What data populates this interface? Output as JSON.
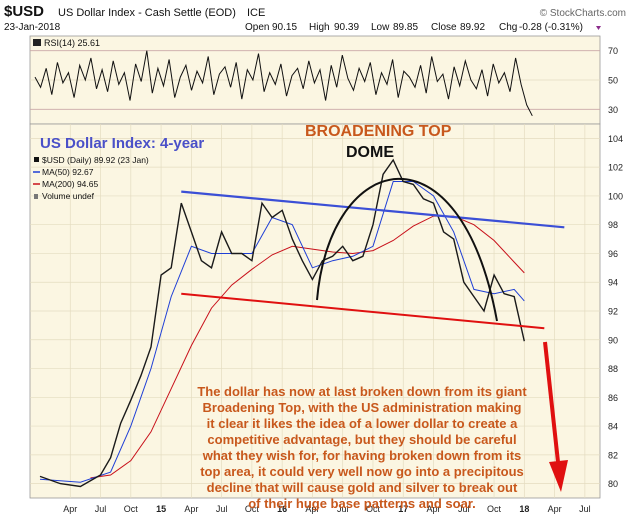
{
  "header": {
    "symbol": "$USD",
    "name": "US Dollar Index - Cash Settle (EOD)",
    "exchange": "ICE",
    "watermark": "© StockCharts.com",
    "date": "23-Jan-2018",
    "open_label": "Open",
    "open": "90.15",
    "high_label": "High",
    "high": "90.39",
    "low_label": "Low",
    "low": "89.85",
    "close_label": "Close",
    "close": "89.92",
    "chg_label": "Chg",
    "chg": "-0.28 (-0.31%)"
  },
  "rsi_panel": {
    "label": "RSI(14) 25.61",
    "ticks": [
      "70",
      "50",
      "30"
    ]
  },
  "legend": {
    "price": "$USD (Daily) 89.92 (23 Jan)",
    "ma50": "MA(50) 92.67",
    "ma200": "MA(200) 94.65",
    "volume": "Volume undef"
  },
  "annotations": {
    "panel_title": "US Dollar Index: 4-year",
    "broadening_top": "BROADENING TOP",
    "dome": "DOME",
    "commentary": [
      "The dollar has now at last broken down from its giant",
      "Broadening Top, with the US administration making",
      "it clear it likes the idea of a lower dollar to create a",
      "competitive advantage, but they should be careful",
      "what they wish for, for having broken down from its",
      "top area, it could very well now go into a precipitous",
      "decline that will cause gold and silver to break out",
      "of their huge base patterns and soar."
    ]
  },
  "colors": {
    "panel_bg": "#fbf6e2",
    "price": "#1a1a1a",
    "ma50": "#1f3fd6",
    "ma200": "#c8101a",
    "trend_upper": "#3b4fd6",
    "trend_lower": "#e01010",
    "arrow": "#e01010",
    "label_orange": "#c8581c",
    "label_blue": "#4a50c8"
  },
  "chart_data": {
    "type": "line",
    "title": "$USD (Daily)",
    "y_ticks": [
      "104",
      "102",
      "100",
      "98",
      "96",
      "94",
      "92",
      "90",
      "88",
      "86",
      "84",
      "82",
      "80"
    ],
    "ylim": [
      79,
      105
    ],
    "x_ticks": [
      "Apr",
      "Jul",
      "Oct",
      "15",
      "Apr",
      "Jul",
      "Oct",
      "16",
      "Apr",
      "Jul",
      "Oct",
      "17",
      "Apr",
      "Jul",
      "Oct",
      "18",
      "Apr",
      "Jul"
    ],
    "series": [
      {
        "name": "$USD (Daily)",
        "x": [
          "2014-01",
          "2014-03",
          "2014-05",
          "2014-07",
          "2014-08",
          "2014-09",
          "2014-10",
          "2014-11",
          "2014-12",
          "2015-01",
          "2015-02",
          "2015-03",
          "2015-04",
          "2015-05",
          "2015-06",
          "2015-07",
          "2015-08",
          "2015-09",
          "2015-10",
          "2015-11",
          "2015-12",
          "2016-01",
          "2016-02",
          "2016-03",
          "2016-04",
          "2016-05",
          "2016-06",
          "2016-07",
          "2016-08",
          "2016-09",
          "2016-10",
          "2016-11",
          "2016-12",
          "2017-01",
          "2017-02",
          "2017-03",
          "2017-04",
          "2017-05",
          "2017-06",
          "2017-07",
          "2017-08",
          "2017-09",
          "2017-10",
          "2017-11",
          "2017-12",
          "2018-01"
        ],
        "values": [
          80.5,
          80.0,
          79.8,
          80.6,
          81.8,
          84.2,
          85.8,
          87.5,
          89.5,
          94.5,
          95.0,
          99.5,
          97.5,
          95.5,
          95.0,
          97.5,
          96.0,
          96.0,
          95.5,
          99.5,
          98.5,
          99.0,
          97.0,
          95.5,
          94.2,
          95.5,
          95.8,
          96.5,
          95.5,
          95.8,
          98.0,
          101.5,
          102.5,
          101.0,
          100.8,
          99.8,
          99.5,
          97.5,
          97.0,
          94.0,
          93.0,
          92.0,
          94.5,
          93.2,
          93.0,
          89.9
        ]
      },
      {
        "name": "MA(50)",
        "x": [
          "2014-01",
          "2014-05",
          "2014-08",
          "2014-10",
          "2014-12",
          "2015-02",
          "2015-04",
          "2015-06",
          "2015-08",
          "2015-10",
          "2015-12",
          "2016-02",
          "2016-04",
          "2016-06",
          "2016-08",
          "2016-10",
          "2016-12",
          "2017-02",
          "2017-04",
          "2017-06",
          "2017-08",
          "2017-10",
          "2017-12",
          "2018-01"
        ],
        "values": [
          80.3,
          80.1,
          80.8,
          84.0,
          88.0,
          93.0,
          96.5,
          96.0,
          96.0,
          96.0,
          98.5,
          98.0,
          95.0,
          95.5,
          95.8,
          96.5,
          101.0,
          101.0,
          100.0,
          97.5,
          93.5,
          93.2,
          93.5,
          92.7
        ]
      },
      {
        "name": "MA(200)",
        "x": [
          "2014-06",
          "2014-08",
          "2014-10",
          "2014-12",
          "2015-02",
          "2015-04",
          "2015-06",
          "2015-08",
          "2015-10",
          "2015-12",
          "2016-02",
          "2016-04",
          "2016-06",
          "2016-08",
          "2016-10",
          "2016-12",
          "2017-02",
          "2017-04",
          "2017-06",
          "2017-08",
          "2017-10",
          "2017-12",
          "2018-01"
        ],
        "values": [
          80.4,
          80.6,
          81.6,
          83.6,
          86.6,
          89.6,
          92.2,
          93.8,
          94.9,
          95.9,
          96.5,
          96.3,
          96.1,
          96.0,
          96.2,
          96.9,
          97.9,
          98.6,
          98.6,
          98.0,
          96.9,
          95.4,
          94.65
        ]
      }
    ],
    "trendlines": [
      {
        "name": "upper",
        "from": [
          "2015-03",
          100.3
        ],
        "to": [
          "2018-01",
          97.4
        ]
      },
      {
        "name": "lower",
        "from": [
          "2015-03",
          93.2
        ],
        "to": [
          "2018-01",
          90.8
        ]
      }
    ],
    "rsi": {
      "name": "RSI(14)",
      "ylim": [
        20,
        80
      ],
      "values": [
        52,
        45,
        58,
        40,
        62,
        48,
        55,
        38,
        60,
        50,
        65,
        44,
        57,
        42,
        63,
        47,
        55,
        36,
        61,
        49,
        70,
        41,
        58,
        46,
        64,
        38,
        52,
        60,
        43,
        56,
        48,
        66,
        40,
        54,
        59,
        45,
        62,
        37,
        57,
        50,
        68,
        42,
        55,
        47,
        61,
        39,
        53,
        58,
        44,
        63,
        48,
        57,
        36,
        60,
        45,
        67,
        51,
        43,
        58,
        49,
        62,
        40,
        55,
        47,
        64,
        38,
        56,
        52,
        45,
        60,
        41,
        66,
        49,
        54,
        37,
        59,
        46,
        63,
        50,
        44,
        57,
        39,
        61,
        48,
        55,
        42,
        65,
        47,
        33,
        25.6
      ]
    }
  }
}
